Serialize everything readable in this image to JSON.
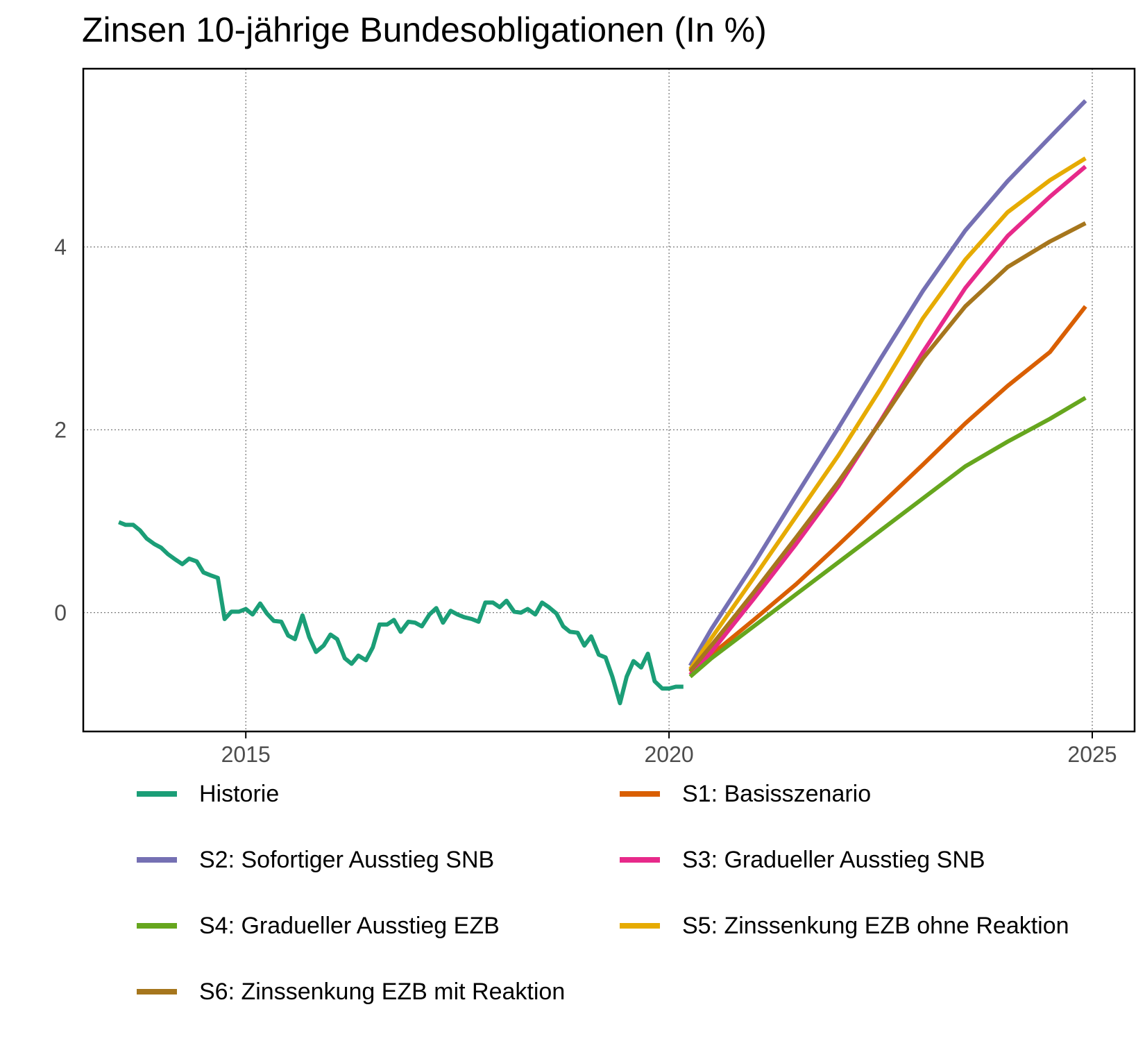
{
  "chart_data": {
    "type": "line",
    "title": "Zinsen 10-jährige Bundesobligationen (In %)",
    "xlabel": "",
    "ylabel": "",
    "xlim": [
      2013.08,
      2025.5
    ],
    "ylim": [
      -1.3,
      5.95
    ],
    "x_ticks": [
      2015,
      2020,
      2025
    ],
    "y_ticks": [
      0,
      2,
      4
    ],
    "grid": true,
    "legend_position": "bottom",
    "series": [
      {
        "name": "Historie",
        "color": "#1B9E77",
        "x": [
          2013.5,
          2013.58,
          2013.67,
          2013.75,
          2013.83,
          2013.92,
          2014.0,
          2014.08,
          2014.17,
          2014.25,
          2014.33,
          2014.42,
          2014.5,
          2014.58,
          2014.67,
          2014.75,
          2014.83,
          2014.92,
          2015.0,
          2015.08,
          2015.17,
          2015.25,
          2015.33,
          2015.42,
          2015.5,
          2015.58,
          2015.67,
          2015.75,
          2015.83,
          2015.92,
          2016.0,
          2016.08,
          2016.17,
          2016.25,
          2016.33,
          2016.42,
          2016.5,
          2016.58,
          2016.67,
          2016.75,
          2016.83,
          2016.92,
          2017.0,
          2017.08,
          2017.17,
          2017.25,
          2017.33,
          2017.42,
          2017.5,
          2017.58,
          2017.67,
          2017.75,
          2017.83,
          2017.92,
          2018.0,
          2018.08,
          2018.17,
          2018.25,
          2018.33,
          2018.42,
          2018.5,
          2018.58,
          2018.67,
          2018.75,
          2018.83,
          2018.92,
          2019.0,
          2019.08,
          2019.17,
          2019.25,
          2019.33,
          2019.42,
          2019.5,
          2019.58,
          2019.67,
          2019.75,
          2019.83,
          2019.92,
          2020.0,
          2020.08,
          2020.17
        ],
        "values": [
          0.99,
          0.96,
          0.96,
          0.9,
          0.81,
          0.75,
          0.71,
          0.64,
          0.58,
          0.53,
          0.59,
          0.56,
          0.44,
          0.41,
          0.38,
          -0.07,
          0.01,
          0.01,
          0.04,
          -0.02,
          0.1,
          -0.01,
          -0.09,
          -0.1,
          -0.25,
          -0.29,
          -0.03,
          -0.27,
          -0.43,
          -0.36,
          -0.24,
          -0.29,
          -0.5,
          -0.56,
          -0.47,
          -0.52,
          -0.38,
          -0.13,
          -0.13,
          -0.08,
          -0.21,
          -0.1,
          -0.11,
          -0.15,
          -0.02,
          0.05,
          -0.11,
          0.02,
          -0.02,
          -0.05,
          -0.07,
          -0.1,
          0.11,
          0.11,
          0.06,
          0.13,
          0.01,
          0.0,
          0.04,
          -0.02,
          0.11,
          0.06,
          -0.01,
          -0.15,
          -0.21,
          -0.22,
          -0.36,
          -0.26,
          -0.46,
          -0.49,
          -0.7,
          -0.99,
          -0.7,
          -0.53,
          -0.6,
          -0.45,
          -0.75,
          -0.83,
          -0.83,
          -0.81,
          -0.81
        ]
      },
      {
        "name": "S1: Basisszenario",
        "color": "#D95F02",
        "x": [
          2020.25,
          2020.5,
          2021.0,
          2021.5,
          2022.0,
          2022.5,
          2023.0,
          2023.5,
          2024.0,
          2024.5,
          2024.92
        ],
        "values": [
          -0.65,
          -0.46,
          -0.08,
          0.31,
          0.74,
          1.18,
          1.62,
          2.07,
          2.48,
          2.85,
          3.35
        ]
      },
      {
        "name": "S2: Sofortiger Ausstieg SNB",
        "color": "#7570B3",
        "x": [
          2020.25,
          2020.5,
          2021.0,
          2021.5,
          2022.0,
          2022.5,
          2023.0,
          2023.5,
          2024.0,
          2024.5,
          2024.92
        ],
        "values": [
          -0.58,
          -0.18,
          0.53,
          1.28,
          2.02,
          2.78,
          3.52,
          4.18,
          4.72,
          5.2,
          5.6
        ]
      },
      {
        "name": "S3: Gradueller Ausstieg SNB",
        "color": "#E7298A",
        "x": [
          2020.25,
          2020.5,
          2021.0,
          2021.5,
          2022.0,
          2022.5,
          2023.0,
          2023.5,
          2024.0,
          2024.5,
          2024.92
        ],
        "values": [
          -0.68,
          -0.43,
          0.15,
          0.75,
          1.38,
          2.1,
          2.85,
          3.55,
          4.12,
          4.55,
          4.88
        ]
      },
      {
        "name": "S4: Gradueller Ausstieg EZB",
        "color": "#66A61E",
        "x": [
          2020.25,
          2020.5,
          2021.0,
          2021.5,
          2022.0,
          2022.5,
          2023.0,
          2023.5,
          2024.0,
          2024.5,
          2024.92
        ],
        "values": [
          -0.7,
          -0.5,
          -0.15,
          0.2,
          0.55,
          0.9,
          1.25,
          1.6,
          1.87,
          2.12,
          2.35
        ]
      },
      {
        "name": "S5: Zinssenkung EZB ohne Reaktion",
        "color": "#E6AB02",
        "x": [
          2020.25,
          2020.5,
          2021.0,
          2021.5,
          2022.0,
          2022.5,
          2023.0,
          2023.5,
          2024.0,
          2024.5,
          2024.92
        ],
        "values": [
          -0.62,
          -0.28,
          0.38,
          1.05,
          1.72,
          2.45,
          3.22,
          3.86,
          4.38,
          4.73,
          4.97
        ]
      },
      {
        "name": "S6: Zinssenkung EZB mit Reaktion",
        "color": "#A6761D",
        "x": [
          2020.25,
          2020.5,
          2021.0,
          2021.5,
          2022.0,
          2022.5,
          2023.0,
          2023.5,
          2024.0,
          2024.5,
          2024.92
        ],
        "values": [
          -0.64,
          -0.36,
          0.22,
          0.82,
          1.43,
          2.09,
          2.78,
          3.35,
          3.78,
          4.06,
          4.26
        ]
      }
    ]
  }
}
